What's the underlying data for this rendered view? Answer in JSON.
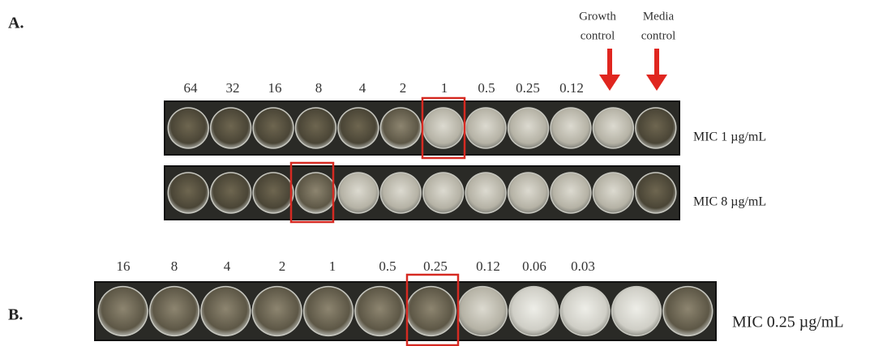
{
  "panel_a": {
    "label": "A.",
    "concentrations": [
      "64",
      "32",
      "16",
      "8",
      "4",
      "2",
      "1",
      "0.5",
      "0.25",
      "0.12"
    ],
    "annotations": [
      {
        "lines": [
          "Growth",
          "control"
        ]
      },
      {
        "lines": [
          "Media",
          "control"
        ]
      }
    ],
    "rows": [
      {
        "mic": "MIC 1 µg/mL"
      },
      {
        "mic": "MIC 8 µg/mL"
      }
    ]
  },
  "panel_b": {
    "label": "B.",
    "concentrations": [
      "16",
      "8",
      "4",
      "2",
      "1",
      "0.5",
      "0.25",
      "0.12",
      "0.06",
      "0.03"
    ],
    "rows": [
      {
        "mic": "MIC 0.25 µg/mL"
      }
    ]
  }
}
